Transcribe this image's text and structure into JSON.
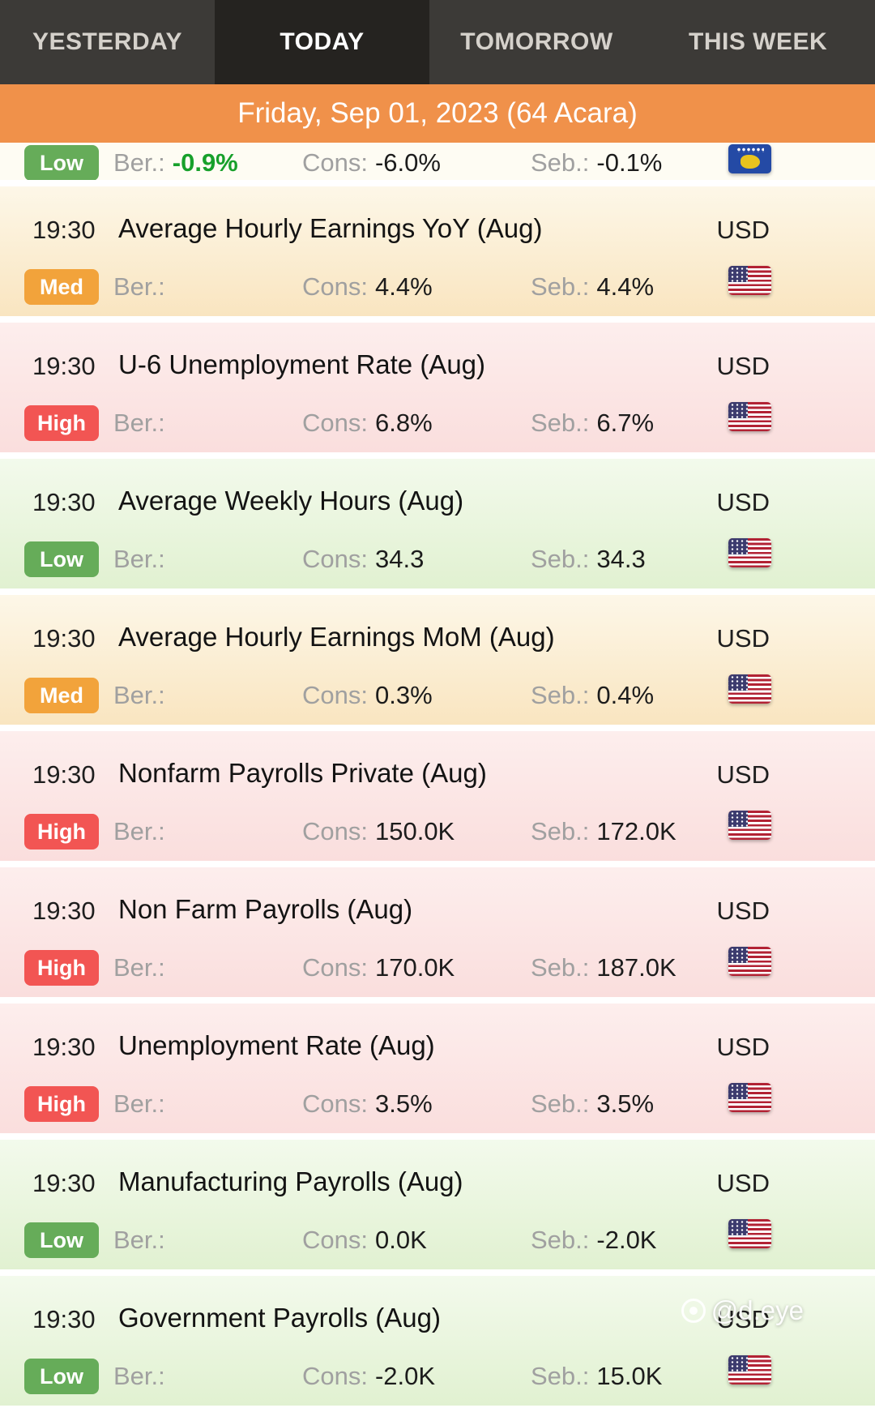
{
  "tabs": [
    {
      "label": "YESTERDAY",
      "active": false
    },
    {
      "label": "TODAY",
      "active": true
    },
    {
      "label": "TOMORROW",
      "active": false
    },
    {
      "label": "THIS WEEK",
      "active": false
    }
  ],
  "banner": {
    "date": "Friday, Sep 01, 2023 (64 Acara)"
  },
  "labels": {
    "ber": "Ber.:",
    "cons": "Cons:",
    "seb": "Seb.:"
  },
  "colors": {
    "banner_orange": "#f0914a",
    "badge_low": "#66ac59",
    "badge_med": "#f2a33b",
    "badge_high": "#f25553",
    "positive_value": "#17a02b",
    "tabbar_bg": "#3c3a37",
    "active_tab_bg": "#252320"
  },
  "watermark": {
    "text": "@d.eye"
  },
  "events": [
    {
      "partial": true,
      "time": "",
      "title": "",
      "currency": "",
      "importance": "Low",
      "ber": "-0.9%",
      "ber_positive": true,
      "cons": "-6.0%",
      "seb": "-0.1%",
      "flag": "kosovo"
    },
    {
      "partial": false,
      "time": "19:30",
      "title": "Average Hourly Earnings YoY (Aug)",
      "currency": "USD",
      "importance": "Med",
      "ber": "",
      "ber_positive": false,
      "cons": "4.4%",
      "seb": "4.4%",
      "flag": "us"
    },
    {
      "partial": false,
      "time": "19:30",
      "title": "U-6 Unemployment Rate (Aug)",
      "currency": "USD",
      "importance": "High",
      "ber": "",
      "ber_positive": false,
      "cons": "6.8%",
      "seb": "6.7%",
      "flag": "us"
    },
    {
      "partial": false,
      "time": "19:30",
      "title": "Average Weekly Hours (Aug)",
      "currency": "USD",
      "importance": "Low",
      "ber": "",
      "ber_positive": false,
      "cons": "34.3",
      "seb": "34.3",
      "flag": "us"
    },
    {
      "partial": false,
      "time": "19:30",
      "title": "Average Hourly Earnings MoM (Aug)",
      "currency": "USD",
      "importance": "Med",
      "ber": "",
      "ber_positive": false,
      "cons": "0.3%",
      "seb": "0.4%",
      "flag": "us"
    },
    {
      "partial": false,
      "time": "19:30",
      "title": "Nonfarm Payrolls Private (Aug)",
      "currency": "USD",
      "importance": "High",
      "ber": "",
      "ber_positive": false,
      "cons": "150.0K",
      "seb": "172.0K",
      "flag": "us"
    },
    {
      "partial": false,
      "time": "19:30",
      "title": "Non Farm Payrolls (Aug)",
      "currency": "USD",
      "importance": "High",
      "ber": "",
      "ber_positive": false,
      "cons": "170.0K",
      "seb": "187.0K",
      "flag": "us"
    },
    {
      "partial": false,
      "time": "19:30",
      "title": "Unemployment Rate (Aug)",
      "currency": "USD",
      "importance": "High",
      "ber": "",
      "ber_positive": false,
      "cons": "3.5%",
      "seb": "3.5%",
      "flag": "us"
    },
    {
      "partial": false,
      "time": "19:30",
      "title": "Manufacturing Payrolls (Aug)",
      "currency": "USD",
      "importance": "Low",
      "ber": "",
      "ber_positive": false,
      "cons": "0.0K",
      "seb": "-2.0K",
      "flag": "us"
    },
    {
      "partial": false,
      "time": "19:30",
      "title": "Government Payrolls (Aug)",
      "currency": "USD",
      "importance": "Low",
      "ber": "",
      "ber_positive": false,
      "cons": "-2.0K",
      "seb": "15.0K",
      "flag": "us"
    }
  ]
}
